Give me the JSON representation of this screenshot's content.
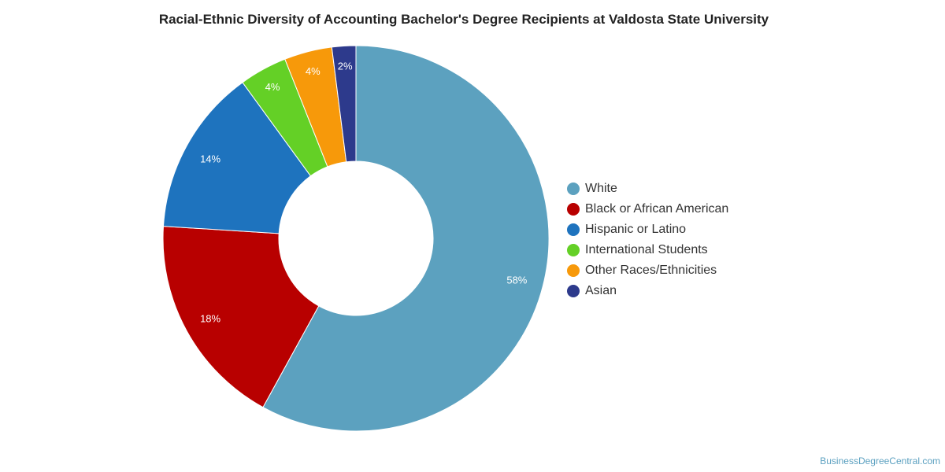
{
  "chart_data": {
    "type": "pie",
    "title": "Racial-Ethnic Diversity of Accounting Bachelor's Degree Recipients at Valdosta State University",
    "donut": true,
    "legend_position": "right",
    "slices": [
      {
        "label": "White",
        "value": 58,
        "display": "58%",
        "color": "#5ca1bf"
      },
      {
        "label": "Black or African American",
        "value": 18,
        "display": "18%",
        "color": "#b80000"
      },
      {
        "label": "Hispanic or Latino",
        "value": 14,
        "display": "14%",
        "color": "#1e73be"
      },
      {
        "label": "International Students",
        "value": 4,
        "display": "4%",
        "color": "#64d026"
      },
      {
        "label": "Other Races/Ethnicities",
        "value": 4,
        "display": "4%",
        "color": "#f7990a"
      },
      {
        "label": "Asian",
        "value": 2,
        "display": "2%",
        "color": "#2d3a8c"
      }
    ]
  },
  "source_text": "BusinessDegreeCentral.com"
}
